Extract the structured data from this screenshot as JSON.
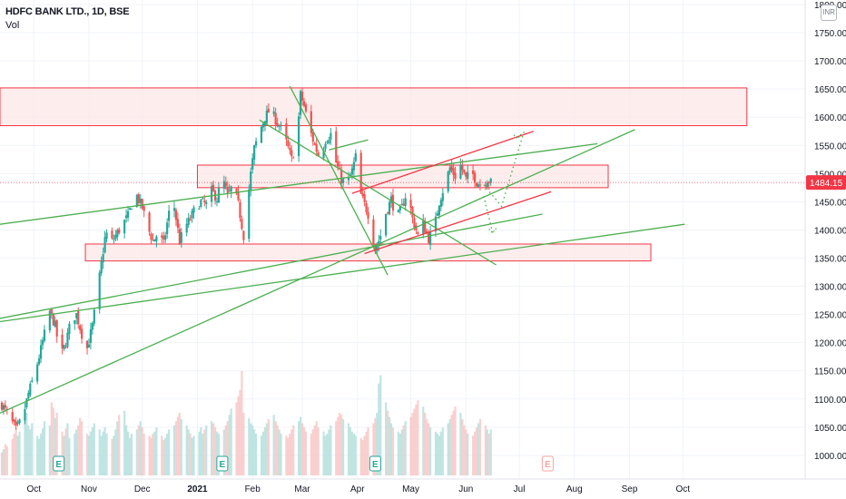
{
  "header": {
    "title": "HDFC BANK LTD., 1D, BSE",
    "volume_label": "Vol",
    "currency_badge": "INR"
  },
  "colors": {
    "up": "#26a69a",
    "down": "#ef5350",
    "trendline_green": "#4caf50",
    "trendline_red": "#f23645",
    "zone_fill": "#fde7e7",
    "zone_border": "#f23645",
    "last_price": "#f23645"
  },
  "chart_data": {
    "type": "candlestick",
    "title": "HDFC BANK LTD., 1D, BSE",
    "xlabel": "",
    "ylabel": "",
    "y_axis_position": "right",
    "ylim": [
      958,
      1808
    ],
    "y_ticks": [
      1000,
      1050,
      1100,
      1150,
      1200,
      1250,
      1300,
      1350,
      1400,
      1450,
      1500,
      1550,
      1600,
      1650,
      1700,
      1750,
      1800
    ],
    "y_tick_labels": [
      "1000.00",
      "1050.00",
      "1100.00",
      "1150.00",
      "1200.00",
      "1250.00",
      "1300.00",
      "1350.00",
      "1400.00",
      "1450.00",
      "1500.00",
      "1550.00",
      "1600.00",
      "1650.00",
      "1700.00",
      "1750.00",
      "1800.00"
    ],
    "x_range_days": [
      0,
      318
    ],
    "x_ticks": [
      {
        "label": "Oct",
        "day": 19
      },
      {
        "label": "Nov",
        "day": 50
      },
      {
        "label": "Dec",
        "day": 80
      },
      {
        "label": "2021",
        "day": 111
      },
      {
        "label": "Feb",
        "day": 142
      },
      {
        "label": "Mar",
        "day": 170
      },
      {
        "label": "Apr",
        "day": 201
      },
      {
        "label": "May",
        "day": 231
      },
      {
        "label": "Jun",
        "day": 262
      },
      {
        "label": "Jul",
        "day": 292
      },
      {
        "label": "Aug",
        "day": 323
      },
      {
        "label": "Sep",
        "day": 354
      },
      {
        "label": "Oct",
        "day": 384
      }
    ],
    "last_price": 1484.15,
    "last_price_label": "1484.15",
    "price_path": [
      [
        1,
        1090
      ],
      [
        5,
        1070
      ],
      [
        9,
        1045
      ],
      [
        13,
        1070
      ],
      [
        16,
        1110
      ],
      [
        19,
        1140
      ],
      [
        22,
        1175
      ],
      [
        25,
        1215
      ],
      [
        28,
        1255
      ],
      [
        31,
        1230
      ],
      [
        34,
        1175
      ],
      [
        37,
        1200
      ],
      [
        40,
        1240
      ],
      [
        43,
        1250
      ],
      [
        46,
        1215
      ],
      [
        49,
        1190
      ],
      [
        52,
        1230
      ],
      [
        55,
        1295
      ],
      [
        57,
        1340
      ],
      [
        59,
        1385
      ],
      [
        61,
        1400
      ],
      [
        63,
        1380
      ],
      [
        66,
        1395
      ],
      [
        69,
        1410
      ],
      [
        72,
        1425
      ],
      [
        74,
        1445
      ],
      [
        77,
        1460
      ],
      [
        80,
        1440
      ],
      [
        83,
        1405
      ],
      [
        86,
        1380
      ],
      [
        89,
        1395
      ],
      [
        92,
        1375
      ],
      [
        95,
        1430
      ],
      [
        98,
        1440
      ],
      [
        101,
        1380
      ],
      [
        104,
        1405
      ],
      [
        107,
        1420
      ],
      [
        110,
        1440
      ],
      [
        113,
        1450
      ],
      [
        116,
        1445
      ],
      [
        119,
        1470
      ],
      [
        122,
        1455
      ],
      [
        125,
        1495
      ],
      [
        128,
        1460
      ],
      [
        131,
        1480
      ],
      [
        134,
        1445
      ],
      [
        137,
        1390
      ],
      [
        139,
        1445
      ],
      [
        141,
        1500
      ],
      [
        143,
        1545
      ],
      [
        146,
        1575
      ],
      [
        149,
        1600
      ],
      [
        152,
        1615
      ],
      [
        155,
        1595
      ],
      [
        158,
        1580
      ],
      [
        161,
        1555
      ],
      [
        164,
        1525
      ],
      [
        167,
        1560
      ],
      [
        169,
        1640
      ],
      [
        171,
        1620
      ],
      [
        174,
        1580
      ],
      [
        177,
        1550
      ],
      [
        180,
        1525
      ],
      [
        183,
        1560
      ],
      [
        186,
        1570
      ],
      [
        189,
        1520
      ],
      [
        192,
        1490
      ],
      [
        195,
        1480
      ],
      [
        198,
        1505
      ],
      [
        200,
        1530
      ],
      [
        202,
        1470
      ],
      [
        205,
        1445
      ],
      [
        208,
        1420
      ],
      [
        211,
        1365
      ],
      [
        214,
        1390
      ],
      [
        217,
        1430
      ],
      [
        220,
        1455
      ],
      [
        223,
        1420
      ],
      [
        226,
        1440
      ],
      [
        229,
        1470
      ],
      [
        232,
        1420
      ],
      [
        235,
        1390
      ],
      [
        238,
        1410
      ],
      [
        241,
        1385
      ],
      [
        244,
        1400
      ],
      [
        247,
        1450
      ],
      [
        250,
        1480
      ],
      [
        253,
        1510
      ],
      [
        256,
        1495
      ],
      [
        259,
        1515
      ],
      [
        262,
        1490
      ],
      [
        265,
        1505
      ],
      [
        268,
        1485
      ],
      [
        271,
        1480
      ],
      [
        274,
        1490
      ],
      [
        276,
        1484
      ]
    ],
    "zones": [
      {
        "name": "resistance-zone-top",
        "day_start": -5,
        "day_end": 420,
        "y_low": 1585,
        "y_high": 1652
      },
      {
        "name": "current-zone",
        "day_start": 111,
        "day_end": 342,
        "y_low": 1475,
        "y_high": 1515
      },
      {
        "name": "support-zone",
        "day_start": 48,
        "day_end": 366,
        "y_low": 1345,
        "y_high": 1375
      }
    ],
    "trendlines": [
      {
        "color": "green",
        "style": "solid",
        "points": [
          [
            -5,
            1240
          ],
          [
            305,
            1428
          ]
        ]
      },
      {
        "color": "green",
        "style": "solid",
        "points": [
          [
            -5,
            1068
          ],
          [
            357,
            1578
          ]
        ]
      },
      {
        "color": "green",
        "style": "solid",
        "points": [
          [
            -5,
            1235
          ],
          [
            385,
            1410
          ]
        ]
      },
      {
        "color": "green",
        "style": "solid",
        "points": [
          [
            -5,
            1408
          ],
          [
            336,
            1553
          ]
        ]
      },
      {
        "color": "green",
        "style": "solid",
        "points": [
          [
            163,
            1655
          ],
          [
            218,
            1320
          ]
        ]
      },
      {
        "color": "green",
        "style": "solid",
        "points": [
          [
            146,
            1595
          ],
          [
            279,
            1338
          ]
        ]
      },
      {
        "color": "red",
        "style": "solid",
        "points": [
          [
            198,
            1465
          ],
          [
            300,
            1575
          ]
        ]
      },
      {
        "color": "red",
        "style": "solid",
        "points": [
          [
            205,
            1358
          ],
          [
            310,
            1468
          ]
        ]
      },
      {
        "color": "green",
        "style": "solid",
        "points": [
          [
            185,
            1542
          ],
          [
            207,
            1560
          ]
        ]
      },
      {
        "color": "green",
        "style": "dotted",
        "points": [
          [
            272,
            1480
          ],
          [
            282,
            1442
          ],
          [
            295,
            1578
          ]
        ]
      },
      {
        "color": "green",
        "style": "dotted",
        "points": [
          [
            272,
            1460
          ],
          [
            277,
            1395
          ]
        ]
      }
    ],
    "volume_ylim": [
      0,
      100
    ],
    "volume_series": [
      22,
      25,
      30,
      28,
      35,
      40,
      45,
      38,
      42,
      55,
      60,
      48,
      44,
      50,
      38,
      35,
      40,
      45,
      52,
      48,
      70,
      65,
      55,
      60,
      42,
      38,
      45,
      50,
      36,
      40,
      44,
      48,
      55,
      52,
      40,
      38,
      42,
      46,
      50,
      44,
      38,
      42,
      46,
      40,
      35,
      38,
      44,
      52,
      58,
      62,
      48,
      42,
      36,
      40,
      44,
      48,
      52,
      46,
      40,
      38,
      36,
      40,
      42,
      46,
      38,
      34,
      36,
      40,
      44,
      48,
      52,
      56,
      60,
      54,
      48,
      44,
      40,
      36,
      38,
      42,
      46,
      40,
      44,
      48,
      52,
      50,
      46,
      42,
      40,
      44,
      48,
      52,
      58,
      64,
      70,
      76,
      82,
      100,
      60,
      55,
      50,
      48,
      44,
      40,
      38,
      42,
      46,
      50,
      54,
      58,
      52,
      48,
      44,
      40,
      38,
      36,
      40,
      44,
      48,
      52,
      56,
      50,
      46,
      42,
      40,
      44,
      48,
      52,
      46,
      42,
      38,
      40,
      44,
      48,
      52,
      56,
      60,
      58,
      54,
      50,
      46,
      42,
      40,
      38,
      36,
      34,
      38,
      42,
      46,
      50,
      55,
      60,
      88,
      96,
      70,
      62,
      56,
      50,
      46,
      42,
      40,
      44,
      48,
      52,
      56,
      60,
      64,
      68,
      72,
      66,
      60,
      54,
      50,
      46,
      42,
      40,
      38,
      42,
      46,
      50,
      54,
      58,
      62,
      66,
      60,
      54,
      48,
      44,
      40,
      38,
      42,
      46,
      50,
      54,
      48,
      44,
      40,
      44,
      48,
      52,
      56,
      60,
      54,
      48,
      44,
      40,
      36,
      40,
      44,
      48,
      52,
      46,
      42,
      38,
      36,
      40,
      44,
      48,
      52,
      56
    ],
    "volume_max_day": 276,
    "event_markers": [
      {
        "day": 33,
        "label": "E",
        "kind": "past"
      },
      {
        "day": 125,
        "label": "E",
        "kind": "past"
      },
      {
        "day": 211,
        "label": "E",
        "kind": "past"
      },
      {
        "day": 308,
        "label": "E",
        "kind": "future"
      }
    ]
  }
}
